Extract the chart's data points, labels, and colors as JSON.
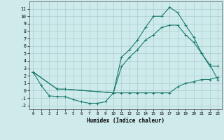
{
  "background_color": "#ceeaea",
  "grid_color": "#aacece",
  "line_color": "#1a7a6e",
  "xlabel": "Humidex (Indice chaleur)",
  "xlim": [
    -0.5,
    23.5
  ],
  "ylim": [
    -2.5,
    12
  ],
  "xticks": [
    0,
    1,
    2,
    3,
    4,
    5,
    6,
    7,
    8,
    9,
    10,
    11,
    12,
    13,
    14,
    15,
    16,
    17,
    18,
    19,
    20,
    21,
    22,
    23
  ],
  "yticks": [
    -2,
    -1,
    0,
    1,
    2,
    3,
    4,
    5,
    6,
    7,
    8,
    9,
    10,
    11
  ],
  "line1_x": [
    0,
    1,
    2,
    3,
    4,
    5,
    6,
    7,
    8,
    9,
    10,
    11,
    12,
    13,
    14,
    15,
    16,
    17,
    18,
    19,
    20,
    21,
    22,
    23
  ],
  "line1_y": [
    2.5,
    0.7,
    -0.7,
    -0.8,
    -0.8,
    -1.2,
    -1.5,
    -1.7,
    -1.7,
    -1.5,
    -0.3,
    -0.3,
    -0.3,
    -0.3,
    -0.3,
    -0.3,
    -0.3,
    -0.3,
    0.5,
    1.0,
    1.2,
    1.5,
    1.5,
    1.8
  ],
  "line2_x": [
    0,
    3,
    4,
    10,
    11,
    12,
    13,
    14,
    15,
    16,
    17,
    18,
    19,
    20,
    21,
    22,
    23
  ],
  "line2_y": [
    2.5,
    0.2,
    0.2,
    -0.3,
    4.5,
    5.5,
    6.8,
    8.5,
    10.0,
    10.0,
    11.2,
    10.5,
    8.8,
    7.2,
    5.0,
    3.3,
    3.3
  ],
  "line3_x": [
    0,
    3,
    4,
    10,
    11,
    12,
    13,
    14,
    15,
    16,
    17,
    18,
    19,
    20,
    21,
    22,
    23
  ],
  "line3_y": [
    2.5,
    0.2,
    0.2,
    -0.3,
    3.2,
    4.5,
    5.5,
    6.8,
    7.5,
    8.5,
    8.8,
    8.8,
    7.5,
    6.5,
    5.0,
    3.5,
    1.5
  ]
}
